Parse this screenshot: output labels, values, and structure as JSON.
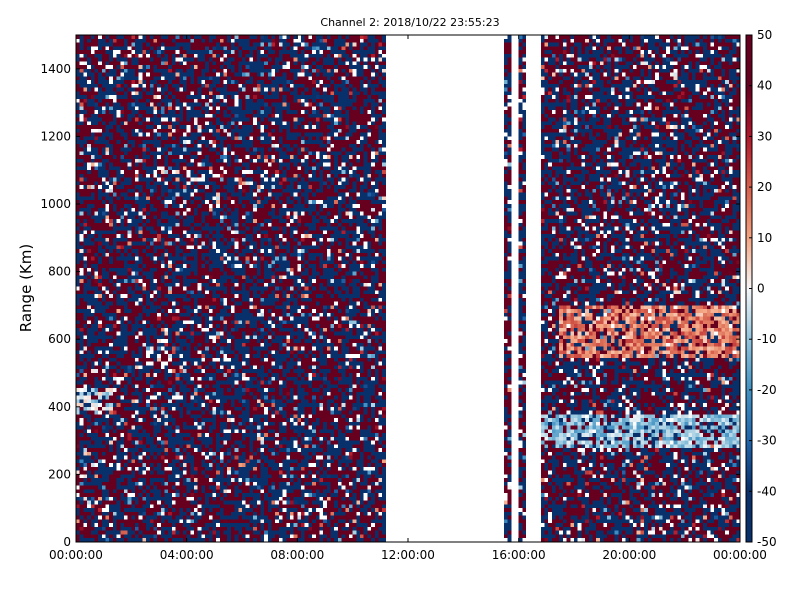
{
  "chart_data": {
    "type": "heatmap",
    "title": "Channel 2: 2018/10/22 23:55:23",
    "xlabel": "",
    "ylabel": "Range (Km)",
    "x_ticks": [
      "00:00:00",
      "04:00:00",
      "08:00:00",
      "12:00:00",
      "16:00:00",
      "20:00:00",
      "00:00:00"
    ],
    "xlim": [
      "00:00:00",
      "24:00:00"
    ],
    "y_ticks": [
      0,
      200,
      400,
      600,
      800,
      1000,
      1200,
      1400
    ],
    "ylim": [
      0,
      1500
    ],
    "colorbar": {
      "colormap": "RdBu_r",
      "range": [
        -50,
        50
      ],
      "ticks": [
        -50,
        -40,
        -30,
        -20,
        -10,
        0,
        10,
        20,
        30,
        40,
        50
      ],
      "low_color": "#08306b",
      "high_color": "#67001f"
    },
    "grid": false,
    "data_gaps": [
      [
        "11:13:00",
        "11:42:00"
      ],
      [
        "11:48:00",
        "15:25:00"
      ],
      [
        "15:45:00",
        "15:57:00"
      ],
      [
        "16:13:00",
        "16:48:00"
      ]
    ],
    "features": [
      {
        "label": "echo near 400 Km",
        "time": [
          "00:00:00",
          "01:20:00"
        ],
        "range_km": [
          380,
          460
        ],
        "value": -5
      },
      {
        "label": "echo 300 Km",
        "time": [
          "16:40:00",
          "24:00:00"
        ],
        "range_km": [
          280,
          380
        ],
        "value": -10
      },
      {
        "label": "echo 550-650 Km",
        "time": [
          "17:30:00",
          "24:00:00"
        ],
        "range_km": [
          540,
          700
        ],
        "value": 15
      }
    ]
  }
}
